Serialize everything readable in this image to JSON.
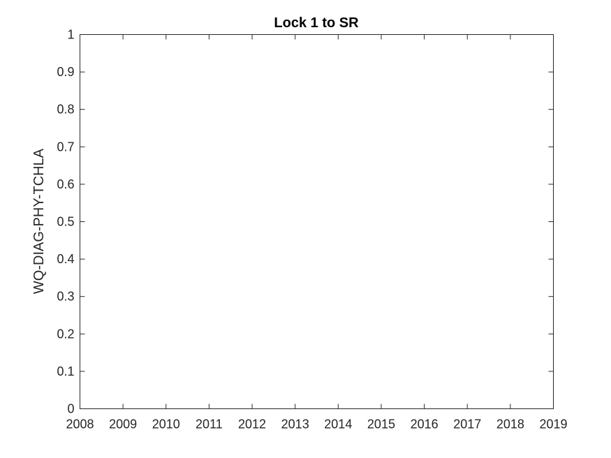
{
  "chart_data": {
    "type": "line",
    "title": "Lock 1 to SR",
    "xlabel": "",
    "ylabel": "WQ-DIAG-PHY-TCHLA",
    "xlim": [
      2008,
      2019
    ],
    "ylim": [
      0,
      1
    ],
    "x_ticks": [
      "2008",
      "2009",
      "2010",
      "2011",
      "2012",
      "2013",
      "2014",
      "2015",
      "2016",
      "2017",
      "2018",
      "2019"
    ],
    "y_ticks": [
      "0",
      "0.1",
      "0.2",
      "0.3",
      "0.4",
      "0.5",
      "0.6",
      "0.7",
      "0.8",
      "0.9",
      "1"
    ],
    "series": [],
    "grid": false,
    "box": true,
    "colors": {
      "axis": "#262626",
      "background": "#ffffff"
    }
  }
}
